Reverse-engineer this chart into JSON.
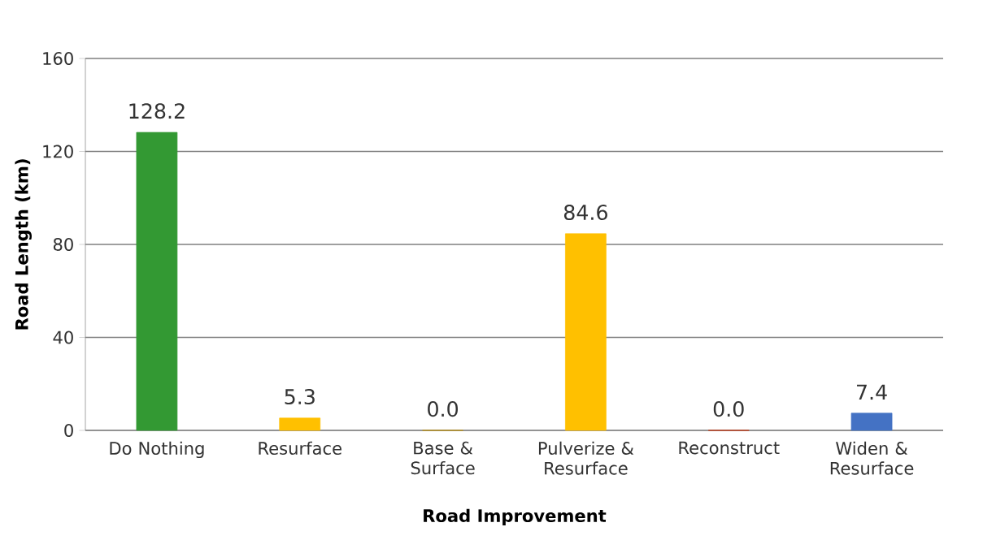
{
  "chart_data": {
    "type": "bar",
    "xlabel": "Road Improvement",
    "ylabel": "Road Length (km)",
    "categories": [
      "Do Nothing",
      "Resurface",
      "Base & Surface",
      "Pulverize & Resurface",
      "Reconstruct",
      "Widen & Resurface"
    ],
    "values": [
      128.2,
      5.3,
      0.0,
      84.6,
      0.0,
      7.4
    ],
    "value_labels": [
      "128.2",
      "5.3",
      "0.0",
      "84.6",
      "0.0",
      "7.4"
    ],
    "colors": [
      "#339933",
      "#ffc000",
      "#bf9000",
      "#ffc000",
      "#c82a00",
      "#4472c4"
    ],
    "ylim": [
      0,
      160
    ],
    "yticks": [
      0,
      40,
      80,
      120,
      160
    ],
    "grid": "y"
  }
}
